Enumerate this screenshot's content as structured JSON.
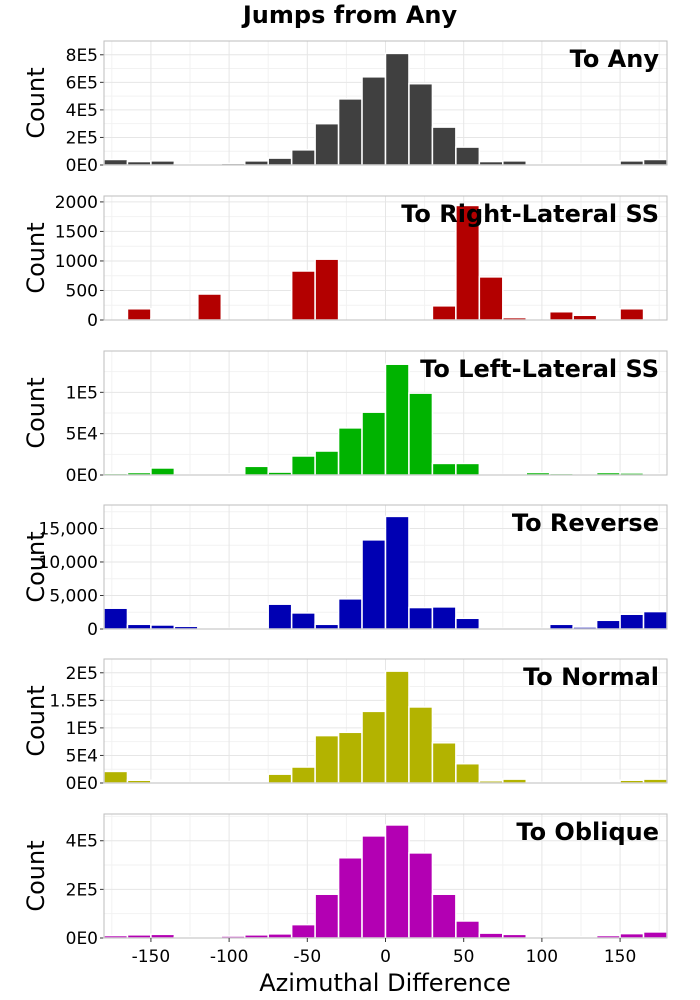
{
  "chart_data": {
    "type": "bar",
    "title": "Jumps from Any",
    "xlabel": "Azimuthal Difference",
    "xlim": [
      -180,
      180
    ],
    "bin_width": 15,
    "bin_starts": [
      -180,
      -165,
      -150,
      -135,
      -120,
      -105,
      -90,
      -75,
      -60,
      -45,
      -30,
      -15,
      0,
      15,
      30,
      45,
      60,
      75,
      90,
      105,
      120,
      135,
      150,
      165
    ],
    "xticks": [
      -150,
      -100,
      -50,
      0,
      50,
      100,
      150
    ],
    "xtick_labels": [
      "-150",
      "-100",
      "-50",
      "0",
      "50",
      "100",
      "150"
    ],
    "panels": [
      {
        "name": "To Any",
        "color": "#404040",
        "ylabel": "Count",
        "ylim": [
          0,
          900000
        ],
        "yticks": [
          0,
          200000,
          400000,
          600000,
          800000
        ],
        "ytick_labels": [
          "0E0",
          "2E5",
          "4E5",
          "6E5",
          "8E5"
        ],
        "values": [
          40000,
          25000,
          30000,
          10000,
          10000,
          12000,
          30000,
          50000,
          110000,
          300000,
          480000,
          640000,
          810000,
          590000,
          275000,
          130000,
          25000,
          30000,
          8000,
          8000,
          10000,
          10000,
          30000,
          40000
        ]
      },
      {
        "name": "To Right-Lateral SS",
        "color": "#b30000",
        "ylabel": "Count",
        "ylim": [
          0,
          2100
        ],
        "yticks": [
          0,
          500,
          1000,
          1500,
          2000
        ],
        "ytick_labels": [
          "0",
          "500",
          "1000",
          "1500",
          "2000"
        ],
        "values": [
          0,
          190,
          20,
          0,
          440,
          0,
          0,
          0,
          830,
          1030,
          0,
          0,
          0,
          0,
          240,
          1940,
          730,
          40,
          0,
          140,
          80,
          0,
          190,
          0
        ]
      },
      {
        "name": "To Left-Lateral SS",
        "color": "#00b300",
        "ylabel": "Count",
        "ylim": [
          0,
          150000
        ],
        "yticks": [
          0,
          50000,
          100000
        ],
        "ytick_labels": [
          "0E0",
          "5E4",
          "1E5"
        ],
        "values": [
          2000,
          3000,
          8500,
          500,
          500,
          1500,
          10500,
          3500,
          23000,
          29000,
          57000,
          76000,
          134000,
          99000,
          14000,
          14000,
          500,
          500,
          3000,
          2000,
          500,
          3000,
          2500,
          1500
        ]
      },
      {
        "name": "To Reverse",
        "color": "#0000b3",
        "ylabel": "Count",
        "ylim": [
          0,
          18500
        ],
        "yticks": [
          0,
          5000,
          10000,
          15000
        ],
        "ytick_labels": [
          "0",
          "5,000",
          "10,000",
          "15,000"
        ],
        "values": [
          3100,
          700,
          600,
          400,
          100,
          100,
          100,
          3700,
          2400,
          700,
          4500,
          13300,
          16800,
          3200,
          3300,
          1600,
          100,
          100,
          100,
          700,
          300,
          1300,
          2200,
          2600
        ]
      },
      {
        "name": "To Normal",
        "color": "#b3b300",
        "ylabel": "Count",
        "ylim": [
          0,
          225000
        ],
        "yticks": [
          0,
          50000,
          100000,
          150000,
          200000
        ],
        "ytick_labels": [
          "0E0",
          "5E4",
          "1E5",
          "1.5E5",
          "2E5"
        ],
        "values": [
          21000,
          5000,
          2500,
          1000,
          2000,
          2500,
          2500,
          16000,
          29000,
          86000,
          92000,
          130000,
          203000,
          138000,
          73000,
          35000,
          4000,
          7000,
          1000,
          1500,
          2500,
          2500,
          5000,
          7000
        ]
      },
      {
        "name": "To Oblique",
        "color": "#b300b3",
        "ylabel": "Count",
        "ylim": [
          0,
          510000
        ],
        "yticks": [
          0,
          200000,
          400000
        ],
        "ytick_labels": [
          "0E0",
          "2E5",
          "4E5"
        ],
        "values": [
          10000,
          13000,
          15000,
          5000,
          5000,
          8000,
          13000,
          17000,
          55000,
          180000,
          330000,
          420000,
          465000,
          350000,
          180000,
          70000,
          20000,
          15000,
          3000,
          3000,
          5000,
          10000,
          18000,
          25000
        ]
      }
    ]
  }
}
